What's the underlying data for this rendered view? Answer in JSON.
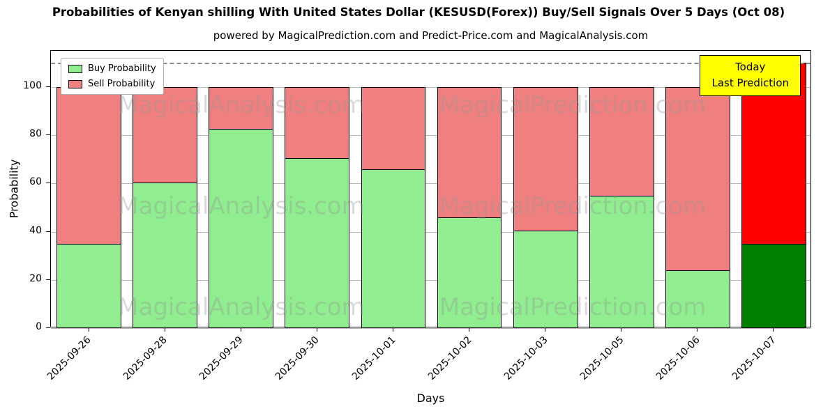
{
  "chart_data": {
    "type": "bar",
    "stacked": true,
    "title": "Probabilities of Kenyan shilling With United States Dollar (KESUSD(Forex)) Buy/Sell Signals Over 5 Days (Oct 08)",
    "subtitle": "powered by MagicalPrediction.com and Predict-Price.com and MagicalAnalysis.com",
    "xlabel": "Days",
    "ylabel": "Probability",
    "ylim": [
      0,
      115
    ],
    "yticks": [
      0,
      20,
      40,
      60,
      80,
      100
    ],
    "grid": "horizontal",
    "legend_position": "upper-left",
    "categories": [
      "2025-09-26",
      "2025-09-28",
      "2025-09-29",
      "2025-09-30",
      "2025-10-01",
      "2025-10-02",
      "2025-10-03",
      "2025-10-05",
      "2025-10-06",
      "2025-10-07"
    ],
    "series": [
      {
        "name": "Buy Probability",
        "color": "#90EE90",
        "values": [
          35,
          60.5,
          82.5,
          70.5,
          66,
          46,
          40.5,
          55,
          24,
          35
        ]
      },
      {
        "name": "Sell Probability",
        "color": "#F08080",
        "values": [
          65,
          39.5,
          17.5,
          29.5,
          34,
          54,
          59.5,
          45,
          76,
          75
        ]
      }
    ],
    "last_bar": {
      "buy_color": "#008000",
      "sell_color": "#FF0000"
    },
    "dashed_line_y": 110,
    "annotation": {
      "line1": "Today",
      "line2": "Last Prediction",
      "bg": "#FFFF00"
    },
    "watermarks": [
      "MagicalAnalysis.com",
      "MagicalPrediction.com"
    ]
  }
}
